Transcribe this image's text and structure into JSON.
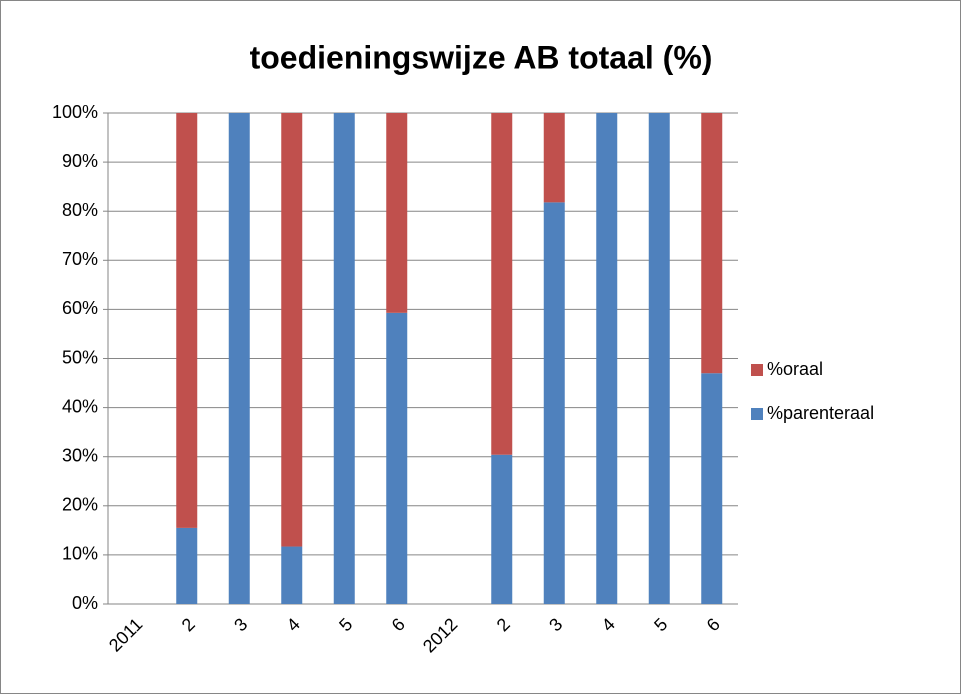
{
  "chart_data": {
    "type": "stacked_bar",
    "title": "toedieningswijze AB  totaal (%)",
    "categories": [
      "2011",
      "2",
      "3",
      "4",
      "5",
      "6",
      "2012",
      "2",
      "3",
      "4",
      "5",
      "6"
    ],
    "series": [
      {
        "name": "%parenteraal",
        "color": "#4f81bd",
        "values": [
          null,
          15.5,
          100,
          11.7,
          100,
          59.3,
          null,
          30.4,
          81.8,
          100,
          100,
          47
        ]
      },
      {
        "name": "%oraal",
        "color": "#c0504d",
        "values": [
          null,
          84.5,
          0,
          88.3,
          0,
          40.7,
          null,
          69.6,
          18.2,
          0,
          0,
          53
        ]
      }
    ],
    "ylim": [
      0,
      100
    ],
    "yticks": [
      {
        "value": 0,
        "label": "0%"
      },
      {
        "value": 10,
        "label": "10%"
      },
      {
        "value": 20,
        "label": "20%"
      },
      {
        "value": 30,
        "label": "30%"
      },
      {
        "value": 40,
        "label": "40%"
      },
      {
        "value": 50,
        "label": "50%"
      },
      {
        "value": 60,
        "label": "60%"
      },
      {
        "value": 70,
        "label": "70%"
      },
      {
        "value": 80,
        "label": "80%"
      },
      {
        "value": 90,
        "label": "90%"
      },
      {
        "value": 100,
        "label": "100%"
      }
    ],
    "grid": true,
    "legend": "right"
  }
}
